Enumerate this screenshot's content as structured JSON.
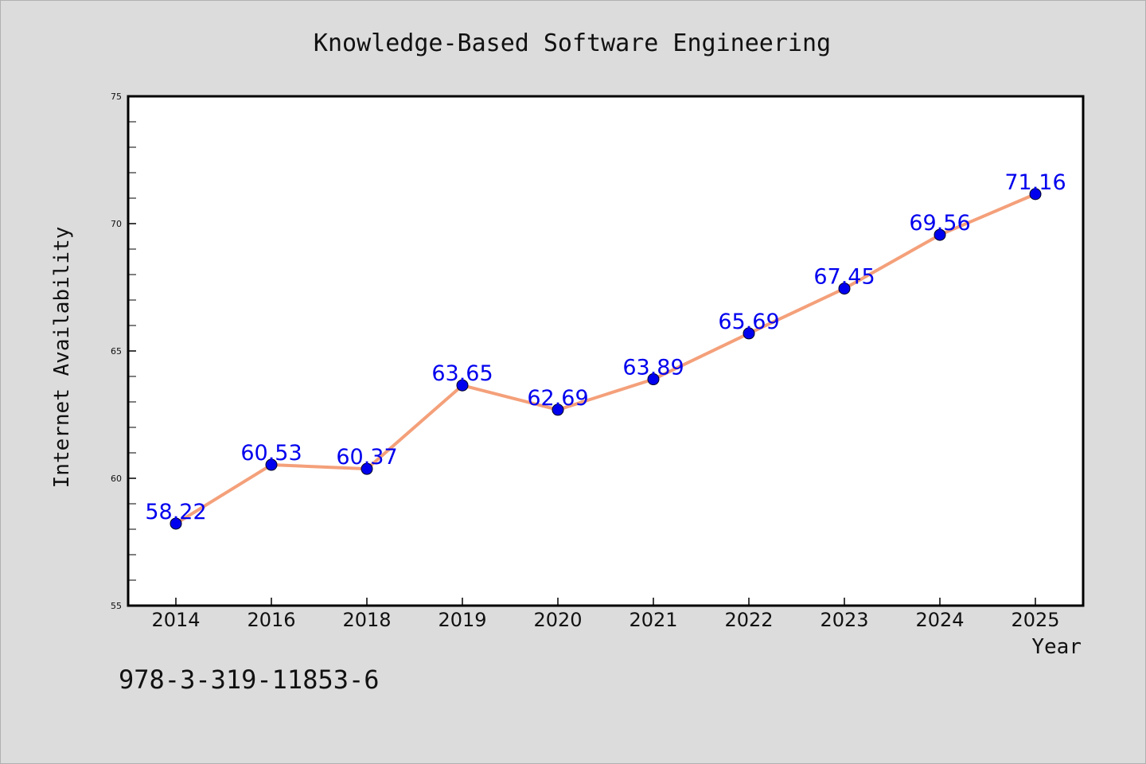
{
  "chart_data": {
    "type": "line",
    "title": "Knowledge-Based Software Engineering",
    "xlabel": "Year",
    "ylabel": "Internet Availability",
    "categories": [
      "2014",
      "2016",
      "2018",
      "2019",
      "2020",
      "2021",
      "2022",
      "2023",
      "2024",
      "2025"
    ],
    "series": [
      {
        "values": [
          58.22,
          60.53,
          60.37,
          63.65,
          62.69,
          63.89,
          65.69,
          67.45,
          69.56,
          71.16
        ],
        "line_color": "#f4a07a",
        "marker_color": "#0000ee",
        "label_color": "#0000ee"
      }
    ],
    "data_labels": [
      "58.22",
      "60.53",
      "60.37",
      "63.65",
      "62.69",
      "63.89",
      "65.69",
      "67.45",
      "69.56",
      "71.16"
    ],
    "ylim": [
      55,
      75
    ],
    "yticks": [
      "55",
      "60",
      "65",
      "70",
      "75"
    ],
    "ytick_values": [
      55,
      60,
      65,
      70,
      75
    ],
    "grid": false,
    "legend": "none"
  },
  "footer": {
    "isbn": "978-3-319-11853-6"
  }
}
